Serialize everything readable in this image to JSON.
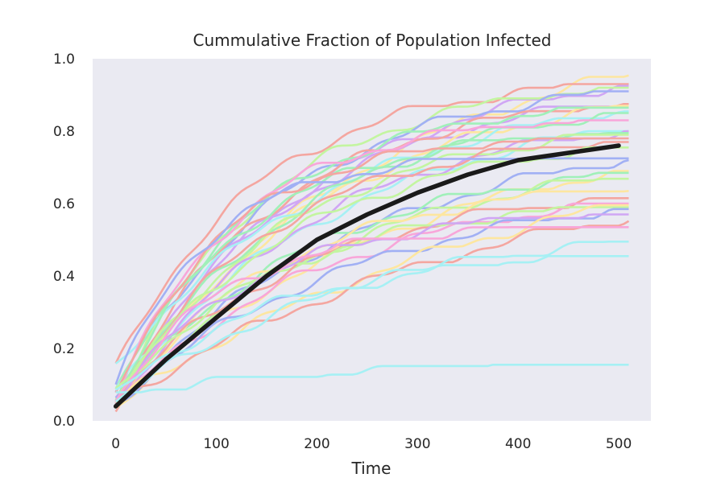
{
  "chart_data": {
    "type": "line",
    "title": "Cummulative Fraction of Population Infected",
    "xlabel": "Time",
    "ylabel": "",
    "xlim": [
      -23,
      532
    ],
    "ylim": [
      0.0,
      1.0
    ],
    "xticks": [
      "0",
      "100",
      "200",
      "300",
      "400",
      "500"
    ],
    "xtick_values": [
      0,
      100,
      200,
      300,
      400,
      500
    ],
    "yticks": [
      "0.0",
      "0.2",
      "0.4",
      "0.6",
      "0.8",
      "1.0"
    ],
    "ytick_values": [
      0.0,
      0.2,
      0.4,
      0.6,
      0.8,
      1.0
    ],
    "grid": false,
    "background": "#eaeaf2",
    "mean_series": {
      "name": "mean",
      "color": "#1a1a1a",
      "x": [
        0,
        50,
        100,
        150,
        200,
        250,
        300,
        350,
        400,
        450,
        500
      ],
      "y": [
        0.04,
        0.17,
        0.285,
        0.4,
        0.5,
        0.57,
        0.63,
        0.68,
        0.72,
        0.74,
        0.76
      ]
    },
    "runs_x_max": 510,
    "runs": [
      {
        "color": "#fde6a0",
        "start": 0.05,
        "final": 0.955,
        "tau": 260
      },
      {
        "color": "#f4a6a0",
        "start": 0.14,
        "final": 0.93,
        "tau": 140
      },
      {
        "color": "#d0a6f4",
        "start": 0.06,
        "final": 0.925,
        "tau": 200
      },
      {
        "color": "#c3f5a0",
        "start": 0.05,
        "final": 0.92,
        "tau": 150
      },
      {
        "color": "#a1b0f4",
        "start": 0.08,
        "final": 0.91,
        "tau": 170
      },
      {
        "color": "#d0a6f4",
        "start": 0.05,
        "final": 0.88,
        "tau": 180
      },
      {
        "color": "#f4a6a0",
        "start": 0.06,
        "final": 0.875,
        "tau": 160
      },
      {
        "color": "#fde6a0",
        "start": 0.04,
        "final": 0.87,
        "tau": 210
      },
      {
        "color": "#a0f0b9",
        "start": 0.07,
        "final": 0.865,
        "tau": 140
      },
      {
        "color": "#a6f0f4",
        "start": 0.15,
        "final": 0.855,
        "tau": 220
      },
      {
        "color": "#a0f0b9",
        "start": 0.05,
        "final": 0.85,
        "tau": 190
      },
      {
        "color": "#f8a6d9",
        "start": 0.06,
        "final": 0.83,
        "tau": 120
      },
      {
        "color": "#a6f0f4",
        "start": 0.08,
        "final": 0.81,
        "tau": 240
      },
      {
        "color": "#d0a6f4",
        "start": 0.04,
        "final": 0.8,
        "tau": 200
      },
      {
        "color": "#a0f0b9",
        "start": 0.06,
        "final": 0.795,
        "tau": 130
      },
      {
        "color": "#c3f5a0",
        "start": 0.05,
        "final": 0.79,
        "tau": 170
      },
      {
        "color": "#f4a6a0",
        "start": 0.07,
        "final": 0.78,
        "tau": 110
      },
      {
        "color": "#f4a6a0",
        "start": 0.04,
        "final": 0.77,
        "tau": 150
      },
      {
        "color": "#c3f5a0",
        "start": 0.06,
        "final": 0.755,
        "tau": 180
      },
      {
        "color": "#a1b0f4",
        "start": 0.09,
        "final": 0.725,
        "tau": 90
      },
      {
        "color": "#a1b0f4",
        "start": 0.05,
        "final": 0.72,
        "tau": 260
      },
      {
        "color": "#fde6a0",
        "start": 0.04,
        "final": 0.69,
        "tau": 280
      },
      {
        "color": "#a0f0b9",
        "start": 0.06,
        "final": 0.685,
        "tau": 200
      },
      {
        "color": "#c3f5a0",
        "start": 0.05,
        "final": 0.675,
        "tau": 230
      },
      {
        "color": "#fde6a0",
        "start": 0.05,
        "final": 0.64,
        "tau": 170
      },
      {
        "color": "#f4a6a0",
        "start": 0.06,
        "final": 0.615,
        "tau": 190
      },
      {
        "color": "#f8a6d9",
        "start": 0.04,
        "final": 0.6,
        "tau": 210
      },
      {
        "color": "#c3f5a0",
        "start": 0.07,
        "final": 0.59,
        "tau": 160
      },
      {
        "color": "#a1b0f4",
        "start": 0.05,
        "final": 0.585,
        "tau": 250
      },
      {
        "color": "#d0a6f4",
        "start": 0.06,
        "final": 0.57,
        "tau": 140
      },
      {
        "color": "#fde6a0",
        "start": 0.05,
        "final": 0.6,
        "tau": 420
      },
      {
        "color": "#f4a6a0",
        "start": 0.05,
        "final": 0.56,
        "tau": 380
      },
      {
        "color": "#f8a6d9",
        "start": 0.06,
        "final": 0.535,
        "tau": 110
      },
      {
        "color": "#a6f0f4",
        "start": 0.05,
        "final": 0.495,
        "tau": 240
      },
      {
        "color": "#a6f0f4",
        "start": 0.07,
        "final": 0.455,
        "tau": 160
      },
      {
        "color": "#a6f0f4",
        "start": 0.08,
        "final": 0.155,
        "tau": 350
      }
    ]
  }
}
